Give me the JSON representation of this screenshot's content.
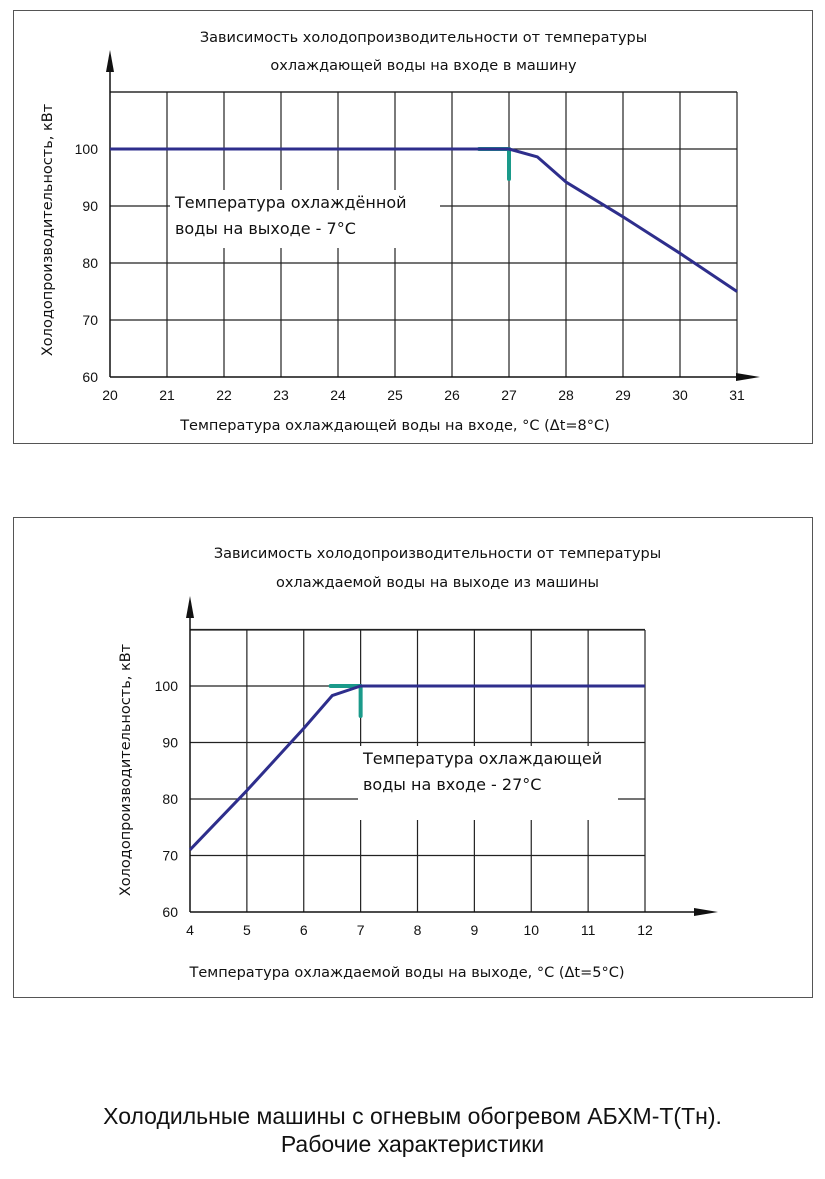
{
  "chart_data": [
    {
      "type": "line",
      "title_lines": [
        "Зависимость холодопроизводительности от температуры",
        "охлаждающей воды на входе в машину"
      ],
      "xlabel": "Температура охлаждающей воды на входе, °С (Δt=8°С)",
      "ylabel": "Холодопроизводительность, кВт",
      "xlim": [
        20,
        31
      ],
      "ylim": [
        60,
        100
      ],
      "xticks": [
        20,
        21,
        22,
        23,
        24,
        25,
        26,
        27,
        28,
        29,
        30,
        31
      ],
      "yticks": [
        60,
        70,
        80,
        90,
        100
      ],
      "grid": true,
      "annotation_lines": [
        "Температура охлаждённой",
        "воды на выходе - 7°С"
      ],
      "series": [
        {
          "x": [
            20,
            26.5,
            27,
            27.5,
            28,
            29,
            30,
            31
          ],
          "y": [
            100,
            100,
            100,
            98.6,
            94.2,
            88.1,
            81.7,
            75
          ],
          "color": "#2e2e8c"
        }
      ],
      "marker": {
        "x": 27,
        "y": 100,
        "color": "#1a9a8a"
      }
    },
    {
      "type": "line",
      "title_lines": [
        "Зависимость холодопроизводительности от температуры",
        "охлаждаемой воды на выходе из машины"
      ],
      "xlabel": "Температура охлаждаемой воды на выходе, °С (Δt=5°С)",
      "ylabel": "Холодопроизводительность, кВт",
      "xlim": [
        4,
        12
      ],
      "ylim": [
        60,
        100
      ],
      "xticks": [
        4,
        5,
        6,
        7,
        8,
        9,
        10,
        11,
        12
      ],
      "yticks": [
        60,
        70,
        80,
        90,
        100
      ],
      "grid": true,
      "annotation_lines": [
        "Температура охлаждающей",
        "воды на входе - 27°С"
      ],
      "series": [
        {
          "x": [
            4,
            5,
            6,
            6.5,
            7,
            12
          ],
          "y": [
            71,
            81.5,
            92.5,
            98.3,
            100,
            100
          ],
          "color": "#2e2e8c"
        }
      ],
      "marker": {
        "x": 7,
        "y": 100,
        "color": "#1a9a8a"
      }
    }
  ],
  "caption": {
    "line1": "Холодильные машины с огневым обогревом АБХМ-Т(Тн).",
    "line2": "Рабочие характеристики"
  }
}
